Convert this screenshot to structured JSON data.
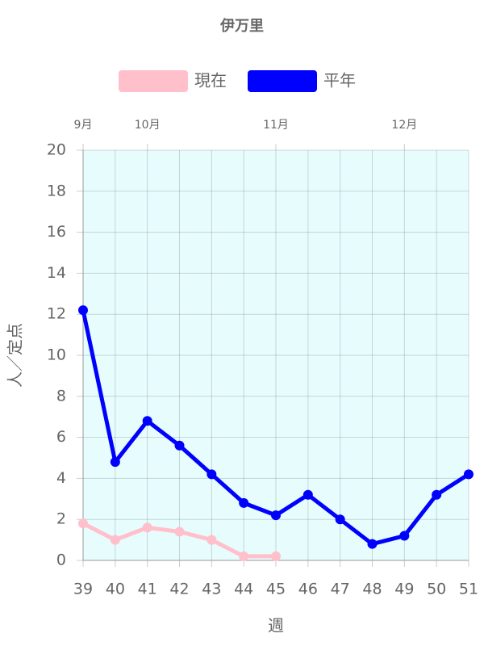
{
  "chart_data": {
    "type": "line",
    "title": "伊万里",
    "x": [
      39,
      40,
      41,
      42,
      43,
      44,
      45,
      46,
      47,
      48,
      49,
      50,
      51
    ],
    "xlim": [
      39,
      51
    ],
    "xticks": [
      39,
      40,
      41,
      42,
      43,
      44,
      45,
      46,
      47,
      48,
      49,
      50,
      51
    ],
    "x2ticks": [
      {
        "value": 39,
        "label": "9月"
      },
      {
        "value": 41,
        "label": "10月"
      },
      {
        "value": 45,
        "label": "11月"
      },
      {
        "value": 49,
        "label": "12月"
      }
    ],
    "xlabel": "週",
    "ylabel": "人／定点",
    "ylim": [
      0,
      20
    ],
    "yticks": [
      0,
      2,
      4,
      6,
      8,
      10,
      12,
      14,
      16,
      18,
      20
    ],
    "grid": true,
    "series": [
      {
        "name": "現在",
        "color": "#ffc0cb",
        "values": [
          1.8,
          1.0,
          1.6,
          1.4,
          1.0,
          0.2,
          0.2,
          null,
          null,
          null,
          null,
          null,
          null
        ]
      },
      {
        "name": "平年",
        "color": "#0000ff",
        "values": [
          12.2,
          4.8,
          6.8,
          5.6,
          4.2,
          2.8,
          2.2,
          3.2,
          2.0,
          0.8,
          1.2,
          3.2,
          4.2
        ]
      }
    ]
  }
}
